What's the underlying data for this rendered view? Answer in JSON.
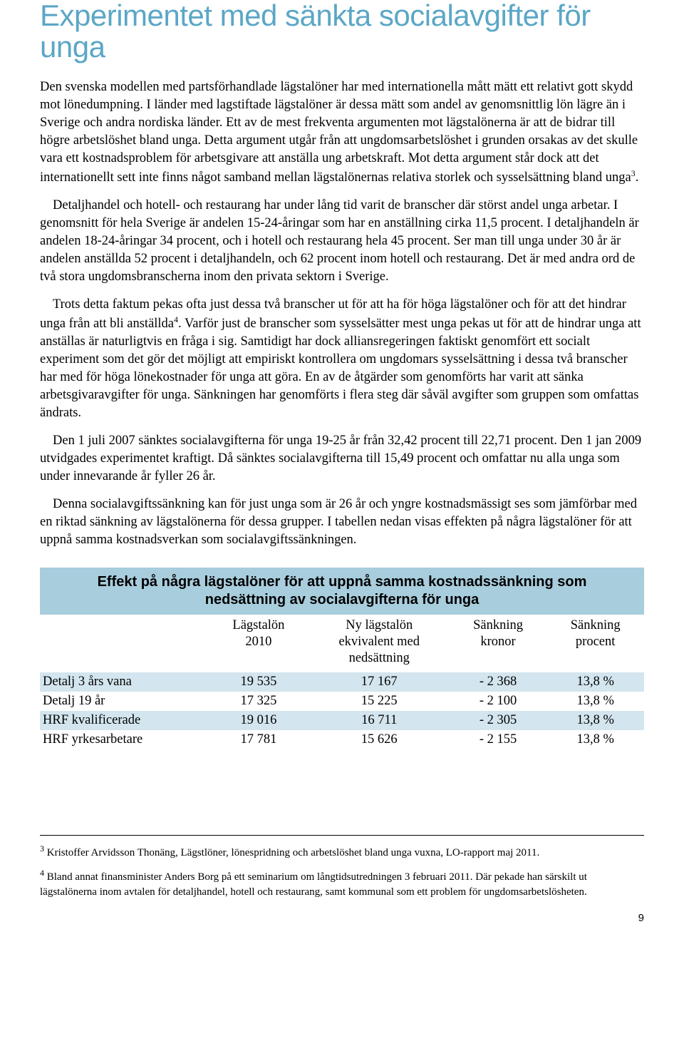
{
  "heading": "Experimentet med sänkta socialavgifter för unga",
  "paragraphs": {
    "p1": "Den svenska modellen med partsförhandlade lägstalöner har med internationella mått mätt ett relativt gott skydd mot lönedumpning. I länder med lagstiftade lägstalöner är dessa mätt som andel av genomsnittlig lön lägre än i Sverige och andra nordiska länder. Ett av de mest frekventa argumenten mot lägstalönerna är att de bidrar till högre arbetslöshet bland unga. Detta argument utgår från att ungdomsarbetslöshet i grunden orsakas av det skulle vara ett kostnadsproblem för arbetsgivare att anställa ung arbetskraft. Mot detta argument står dock att det internationellt sett inte finns något samband mellan lägstalönernas relativa storlek och sysselsättning bland unga",
    "p1_tail": ".",
    "p2": "Detaljhandel och hotell- och restaurang har under lång tid varit de branscher där störst andel unga arbetar. I genomsnitt för hela Sverige är andelen 15-24-åringar som har en anställning cirka 11,5 procent. I detaljhandeln är andelen 18-24-åringar 34 procent, och i hotell och restaurang hela 45 procent. Ser man till unga under 30 år är andelen anställda 52 procent i detaljhandeln, och 62 procent inom hotell och restaurang. Det är med andra ord de två stora ungdomsbranscherna inom den privata sektorn i Sverige.",
    "p3a": "Trots detta faktum pekas ofta just dessa två branscher ut för att ha för höga lägstalöner och för att det hindrar unga från att bli anställda",
    "p3b": ". Varför just de branscher som sysselsätter mest unga pekas ut för att de hindrar unga att anställas är naturligtvis en fråga i sig. Samtidigt har dock alliansregeringen faktiskt genomfört ett socialt experiment som det gör det möjligt att empiriskt kontrollera om ungdomars sysselsättning i dessa två branscher har med för höga lönekostnader för unga att göra. En av de åtgärder som genomförts har varit att sänka arbetsgivaravgifter för unga. Sänkningen har genomförts i flera steg där såväl avgifter som gruppen som omfattas ändrats.",
    "p4": "Den 1 juli 2007 sänktes socialavgifterna för unga 19-25 år från 32,42 procent till 22,71 procent. Den 1 jan 2009 utvidgades experimentet kraftigt. Då sänktes socialavgifterna till 15,49 procent och omfattar nu alla unga som under innevarande år fyller 26 år.",
    "p5": "Denna socialavgiftssänkning kan för just unga som är 26 år och yngre kostnadsmässigt ses som jämförbar med en riktad sänkning av lägstalönerna för dessa grupper. I tabellen nedan visas effekten på några lägstalöner för att uppnå samma kostnadsverkan som socialavgiftssänkningen."
  },
  "sup3": "3",
  "sup4": "4",
  "table": {
    "title": "Effekt på några lägstalöner för att uppnå samma kostnadssänkning som nedsättning av socialavgifterna för unga",
    "title_bg_color": "#a8cddd",
    "shade_bg_color": "#d3e5ee",
    "columns": {
      "c1": "",
      "c2_line1": "Lägstalön",
      "c2_line2": "2010",
      "c3_line1": "Ny lägstalön",
      "c3_line2": "ekvivalent med",
      "c3_line3": "nedsättning",
      "c4_line1": "Sänkning",
      "c4_line2": "kronor",
      "c5_line1": "Sänkning",
      "c5_line2": "procent"
    },
    "rows": [
      {
        "label": "Detalj 3 års vana",
        "lagstalon": "19 535",
        "ny": "17 167",
        "kr": "- 2 368",
        "pct": "13,8 %"
      },
      {
        "label": "Detalj 19 år",
        "lagstalon": "17 325",
        "ny": "15 225",
        "kr": "- 2 100",
        "pct": "13,8 %"
      },
      {
        "label": "HRF kvalificerade",
        "lagstalon": "19 016",
        "ny": "16 711",
        "kr": "- 2 305",
        "pct": "13,8 %"
      },
      {
        "label": "HRF yrkesarbetare",
        "lagstalon": "17 781",
        "ny": "15 626",
        "kr": "- 2 155",
        "pct": "13,8 %"
      }
    ]
  },
  "footnotes": {
    "f3_num": "3",
    "f3": " Kristoffer Arvidsson Thonäng, Lägstlöner, lönespridning och arbetslöshet bland unga vuxna, LO-rapport maj 2011.",
    "f4_num": "4",
    "f4": " Bland annat finansminister Anders Borg på ett seminarium om långtidsutredningen 3 februari 2011. Där pekade han särskilt ut lägstalönerna inom avtalen för detaljhandel, hotell och restaurang, samt kommunal som ett problem för ungdomsarbetslösheten."
  },
  "page_number": "9"
}
